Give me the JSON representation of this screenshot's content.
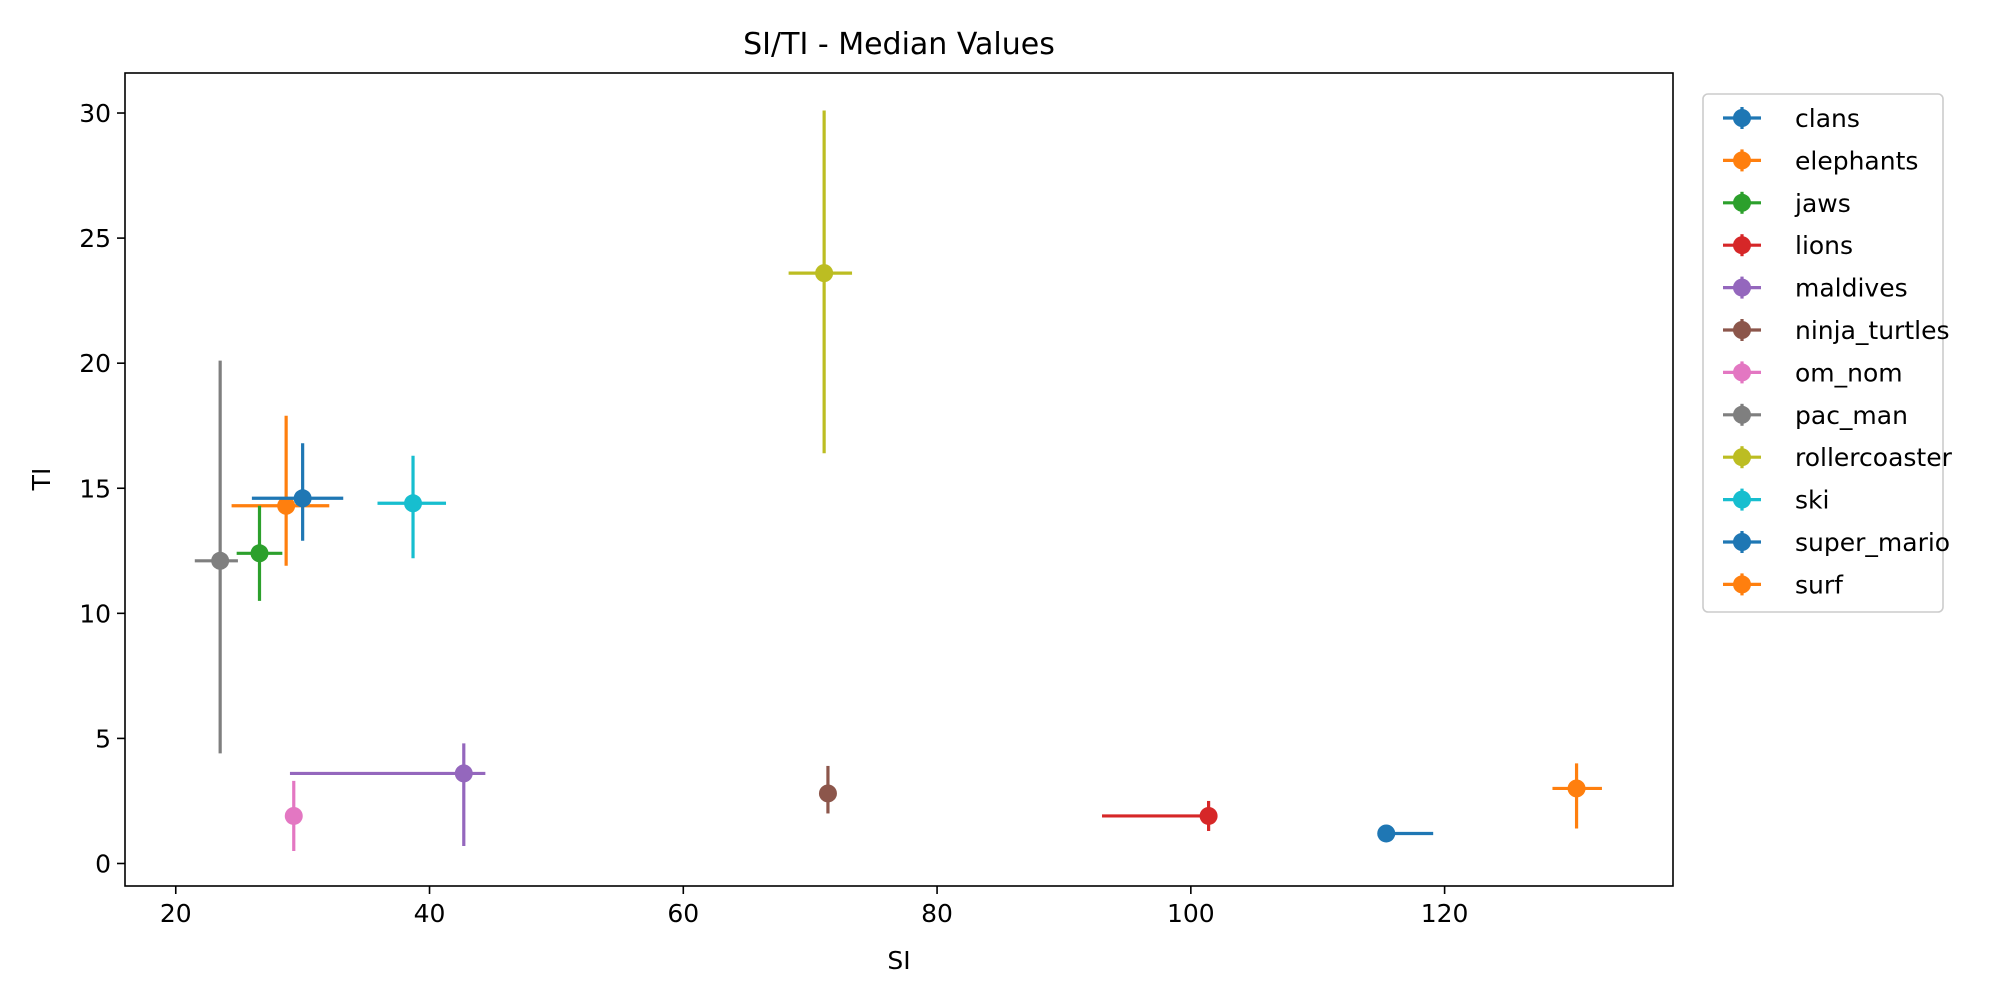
{
  "chart_data": {
    "type": "scatter",
    "title": "SI/TI - Median Values",
    "xlabel": "SI",
    "ylabel": "TI",
    "xlim": [
      16,
      138
    ],
    "ylim": [
      -0.9,
      31.6
    ],
    "xticks": [
      20,
      40,
      60,
      80,
      100,
      120
    ],
    "yticks": [
      0,
      5,
      10,
      15,
      20,
      25,
      30
    ],
    "grid": false,
    "legend": "outside-top-right",
    "error_bars": true,
    "series": [
      {
        "name": "clans",
        "color": "#1f77b4",
        "x": 115.4,
        "y": 1.2,
        "x_err": [
          115.4,
          119.1
        ],
        "y_err": [
          1.2,
          1.2
        ]
      },
      {
        "name": "elephants",
        "color": "#ff7f0e",
        "x": 28.7,
        "y": 14.3,
        "x_err": [
          24.4,
          32.1
        ],
        "y_err": [
          11.9,
          17.9
        ]
      },
      {
        "name": "jaws",
        "color": "#2ca02c",
        "x": 26.6,
        "y": 12.4,
        "x_err": [
          24.8,
          28.4
        ],
        "y_err": [
          10.5,
          14.3
        ]
      },
      {
        "name": "lions",
        "color": "#d62728",
        "x": 101.4,
        "y": 1.9,
        "x_err": [
          93.0,
          101.4
        ],
        "y_err": [
          1.3,
          2.5
        ]
      },
      {
        "name": "maldives",
        "color": "#9467bd",
        "x": 42.7,
        "y": 3.6,
        "x_err": [
          29.0,
          44.4
        ],
        "y_err": [
          0.7,
          4.8
        ]
      },
      {
        "name": "ninja_turtles",
        "color": "#8c564b",
        "x": 71.4,
        "y": 2.8,
        "x_err": [
          71.4,
          71.4
        ],
        "y_err": [
          2.0,
          3.9
        ]
      },
      {
        "name": "om_nom",
        "color": "#e377c2",
        "x": 29.3,
        "y": 1.9,
        "x_err": [
          29.3,
          29.3
        ],
        "y_err": [
          0.5,
          3.3
        ]
      },
      {
        "name": "pac_man",
        "color": "#7f7f7f",
        "x": 23.5,
        "y": 12.1,
        "x_err": [
          21.5,
          24.9
        ],
        "y_err": [
          4.4,
          20.1
        ]
      },
      {
        "name": "rollercoaster",
        "color": "#bcbd22",
        "x": 71.1,
        "y": 23.6,
        "x_err": [
          68.3,
          73.3
        ],
        "y_err": [
          16.4,
          30.1
        ]
      },
      {
        "name": "ski",
        "color": "#17becf",
        "x": 38.7,
        "y": 14.4,
        "x_err": [
          35.9,
          41.3
        ],
        "y_err": [
          12.2,
          16.3
        ]
      },
      {
        "name": "super_mario",
        "color": "#1f77b4",
        "x": 30.0,
        "y": 14.6,
        "x_err": [
          26.0,
          33.2
        ],
        "y_err": [
          12.9,
          16.8
        ]
      },
      {
        "name": "surf",
        "color": "#ff7f0e",
        "x": 130.4,
        "y": 3.0,
        "x_err": [
          128.5,
          132.4
        ],
        "y_err": [
          1.4,
          4.0
        ]
      }
    ]
  }
}
